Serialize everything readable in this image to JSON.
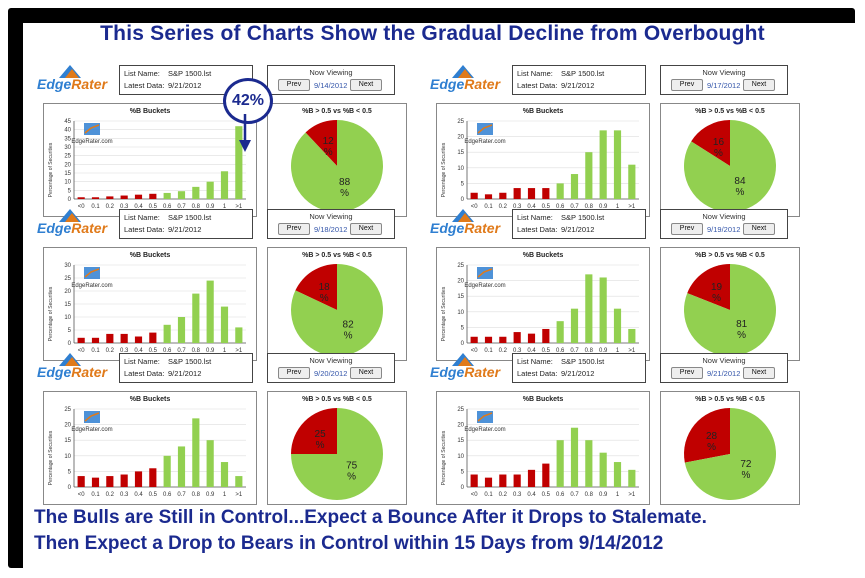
{
  "title": "This Series of Charts Show the Gradual Decline from Overbought",
  "bottom_text": [
    "The Bulls are Still in Control...Expect a Bounce After it Drops to Stalemate.",
    "Then Expect a Drop to Bears in Control within 15 Days from 9/14/2012"
  ],
  "callout": "42%",
  "logo_text": [
    "Edge",
    "Rater"
  ],
  "watermark": "EdgeRater.com",
  "labels": {
    "list_name": "List Name:",
    "latest_data": "Latest Data:",
    "now_viewing": "Now Viewing",
    "prev": "Prev",
    "next": "Next",
    "bar_title": "%B Buckets",
    "pie_title": "%B > 0.5 vs %B < 0.5",
    "ylabel": "Percentage of Securities"
  },
  "colors": {
    "bear": "#c00000",
    "bull": "#92d050",
    "title": "#1b2a8f"
  },
  "chart_data": [
    {
      "type": "bar",
      "view_date": "9/14/2012",
      "list": "S&P 1500.lst",
      "latest": "9/21/2012",
      "categories": [
        "<0",
        "0.1",
        "0.2",
        "0.3",
        "0.4",
        "0.5",
        "0.6",
        "0.7",
        "0.8",
        "0.9",
        "1",
        ">1"
      ],
      "values": [
        1,
        1,
        1.5,
        2,
        2.5,
        3,
        3.5,
        4.5,
        7,
        10,
        16,
        42
      ],
      "ylim": [
        0,
        45
      ],
      "yticks": [
        0,
        5,
        10,
        15,
        20,
        25,
        30,
        35,
        40,
        45
      ],
      "pie": {
        "bear": 12,
        "bull": 88
      }
    },
    {
      "type": "bar",
      "view_date": "9/17/2012",
      "list": "S&P 1500.lst",
      "latest": "9/21/2012",
      "categories": [
        "<0",
        "0.1",
        "0.2",
        "0.3",
        "0.4",
        "0.5",
        "0.6",
        "0.7",
        "0.8",
        "0.9",
        "1",
        ">1"
      ],
      "values": [
        2,
        1.5,
        2,
        3.5,
        3.5,
        3.5,
        5,
        8,
        15,
        22,
        22,
        11
      ],
      "ylim": [
        0,
        25
      ],
      "yticks": [
        0,
        5,
        10,
        15,
        20,
        25
      ],
      "pie": {
        "bear": 16,
        "bull": 84
      }
    },
    {
      "type": "bar",
      "view_date": "9/18/2012",
      "list": "S&P 1500.lst",
      "latest": "9/21/2012",
      "categories": [
        "<0",
        "0.1",
        "0.2",
        "0.3",
        "0.4",
        "0.5",
        "0.6",
        "0.7",
        "0.8",
        "0.9",
        "1",
        ">1"
      ],
      "values": [
        2,
        2,
        3.5,
        3.5,
        2.5,
        4,
        7,
        10,
        19,
        24,
        14,
        6
      ],
      "ylim": [
        0,
        30
      ],
      "yticks": [
        0,
        5,
        10,
        15,
        20,
        25,
        30
      ],
      "pie": {
        "bear": 18,
        "bull": 82
      }
    },
    {
      "type": "bar",
      "view_date": "9/19/2012",
      "list": "S&P 1500.lst",
      "latest": "9/21/2012",
      "categories": [
        "<0",
        "0.1",
        "0.2",
        "0.3",
        "0.4",
        "0.5",
        "0.6",
        "0.7",
        "0.8",
        "0.9",
        "1",
        ">1"
      ],
      "values": [
        2,
        2,
        2,
        3.5,
        3,
        4.5,
        7,
        11,
        22,
        21,
        11,
        4.5
      ],
      "ylim": [
        0,
        25
      ],
      "yticks": [
        0,
        5,
        10,
        15,
        20,
        25
      ],
      "pie": {
        "bear": 19,
        "bull": 81
      }
    },
    {
      "type": "bar",
      "view_date": "9/20/2012",
      "list": "S&P 1500.lst",
      "latest": "9/21/2012",
      "categories": [
        "<0",
        "0.1",
        "0.2",
        "0.3",
        "0.4",
        "0.5",
        "0.6",
        "0.7",
        "0.8",
        "0.9",
        "1",
        ">1"
      ],
      "values": [
        3.5,
        3,
        3.5,
        4,
        5,
        6,
        10,
        13,
        22,
        15,
        8,
        3.5
      ],
      "ylim": [
        0,
        25
      ],
      "yticks": [
        0,
        5,
        10,
        15,
        20,
        25
      ],
      "pie": {
        "bear": 25,
        "bull": 75
      }
    },
    {
      "type": "bar",
      "view_date": "9/21/2012",
      "list": "S&P 1500.lst",
      "latest": "9/21/2012",
      "categories": [
        "<0",
        "0.1",
        "0.2",
        "0.3",
        "0.4",
        "0.5",
        "0.6",
        "0.7",
        "0.8",
        "0.9",
        "1",
        ">1"
      ],
      "values": [
        4,
        3,
        4,
        4,
        5.5,
        7.5,
        15,
        19,
        15,
        11,
        8,
        5.5
      ],
      "ylim": [
        0,
        25
      ],
      "yticks": [
        0,
        5,
        10,
        15,
        20,
        25
      ],
      "pie": {
        "bear": 28,
        "bull": 72
      }
    }
  ]
}
